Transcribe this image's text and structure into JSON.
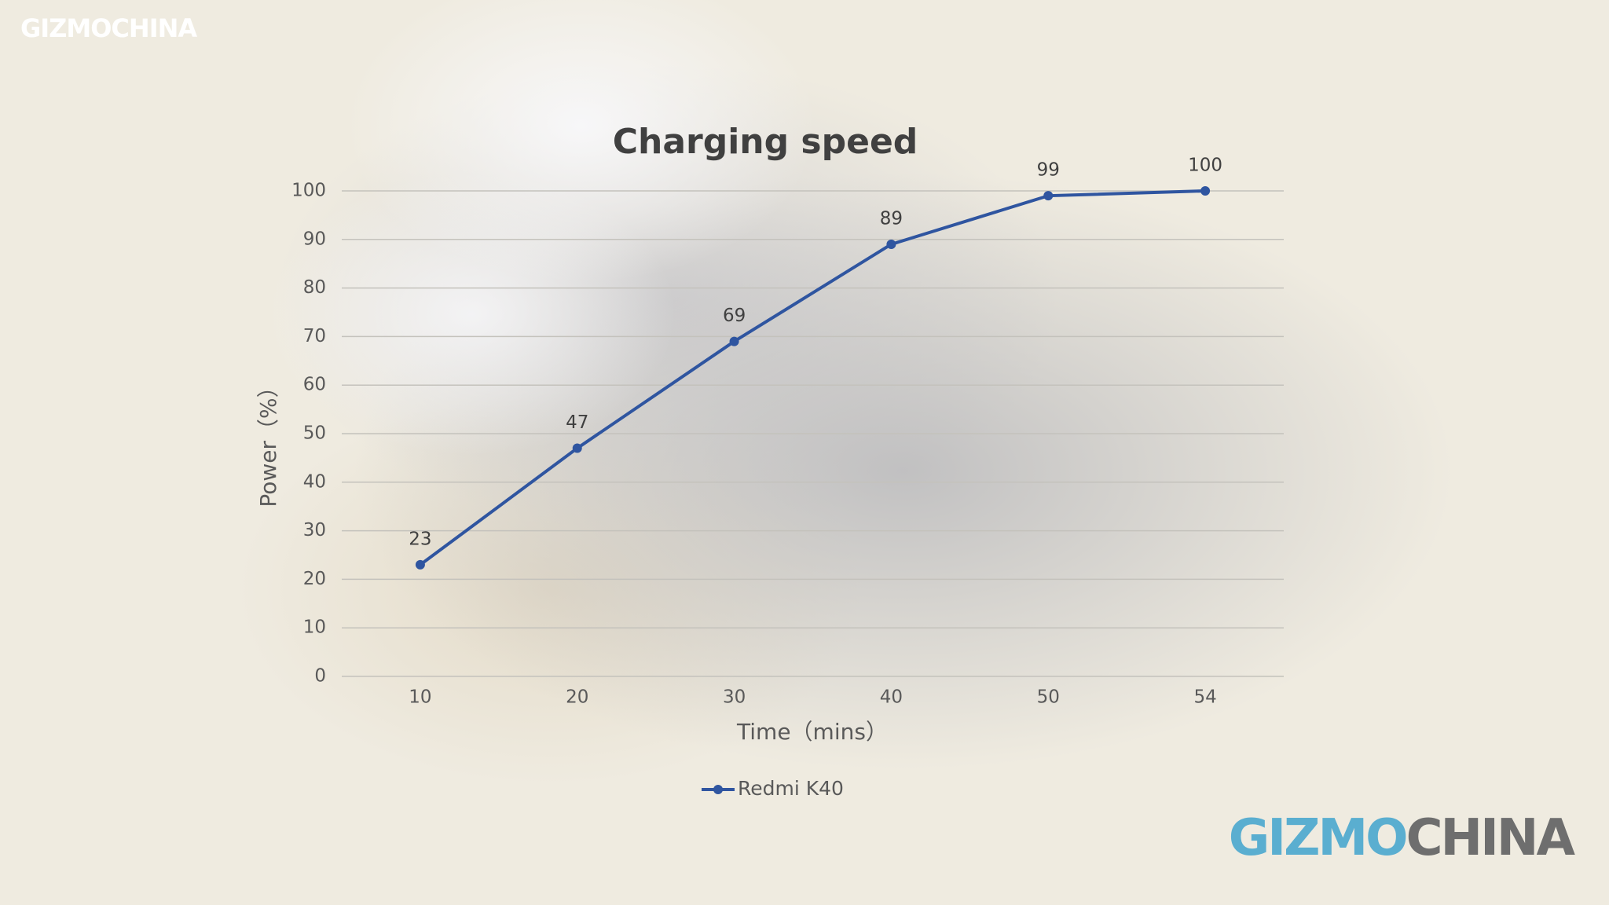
{
  "watermark": "GIZMOCHINA",
  "logo": [
    "GIZMO",
    "CHINA"
  ],
  "chart_data": {
    "type": "line",
    "title": "Charging speed",
    "x_label": "Time（mins）",
    "y_label": "Power（%）",
    "categories": [
      "10",
      "20",
      "30",
      "40",
      "50",
      "54"
    ],
    "series": [
      {
        "name": "Redmi K40",
        "color": "#2f55a0",
        "values": [
          23,
          47,
          69,
          89,
          99,
          100
        ]
      }
    ],
    "ylim": [
      0,
      100
    ],
    "yticks": [
      0,
      10,
      20,
      30,
      40,
      50,
      60,
      70,
      80,
      90,
      100
    ],
    "grid": true,
    "legend": "bottom"
  }
}
